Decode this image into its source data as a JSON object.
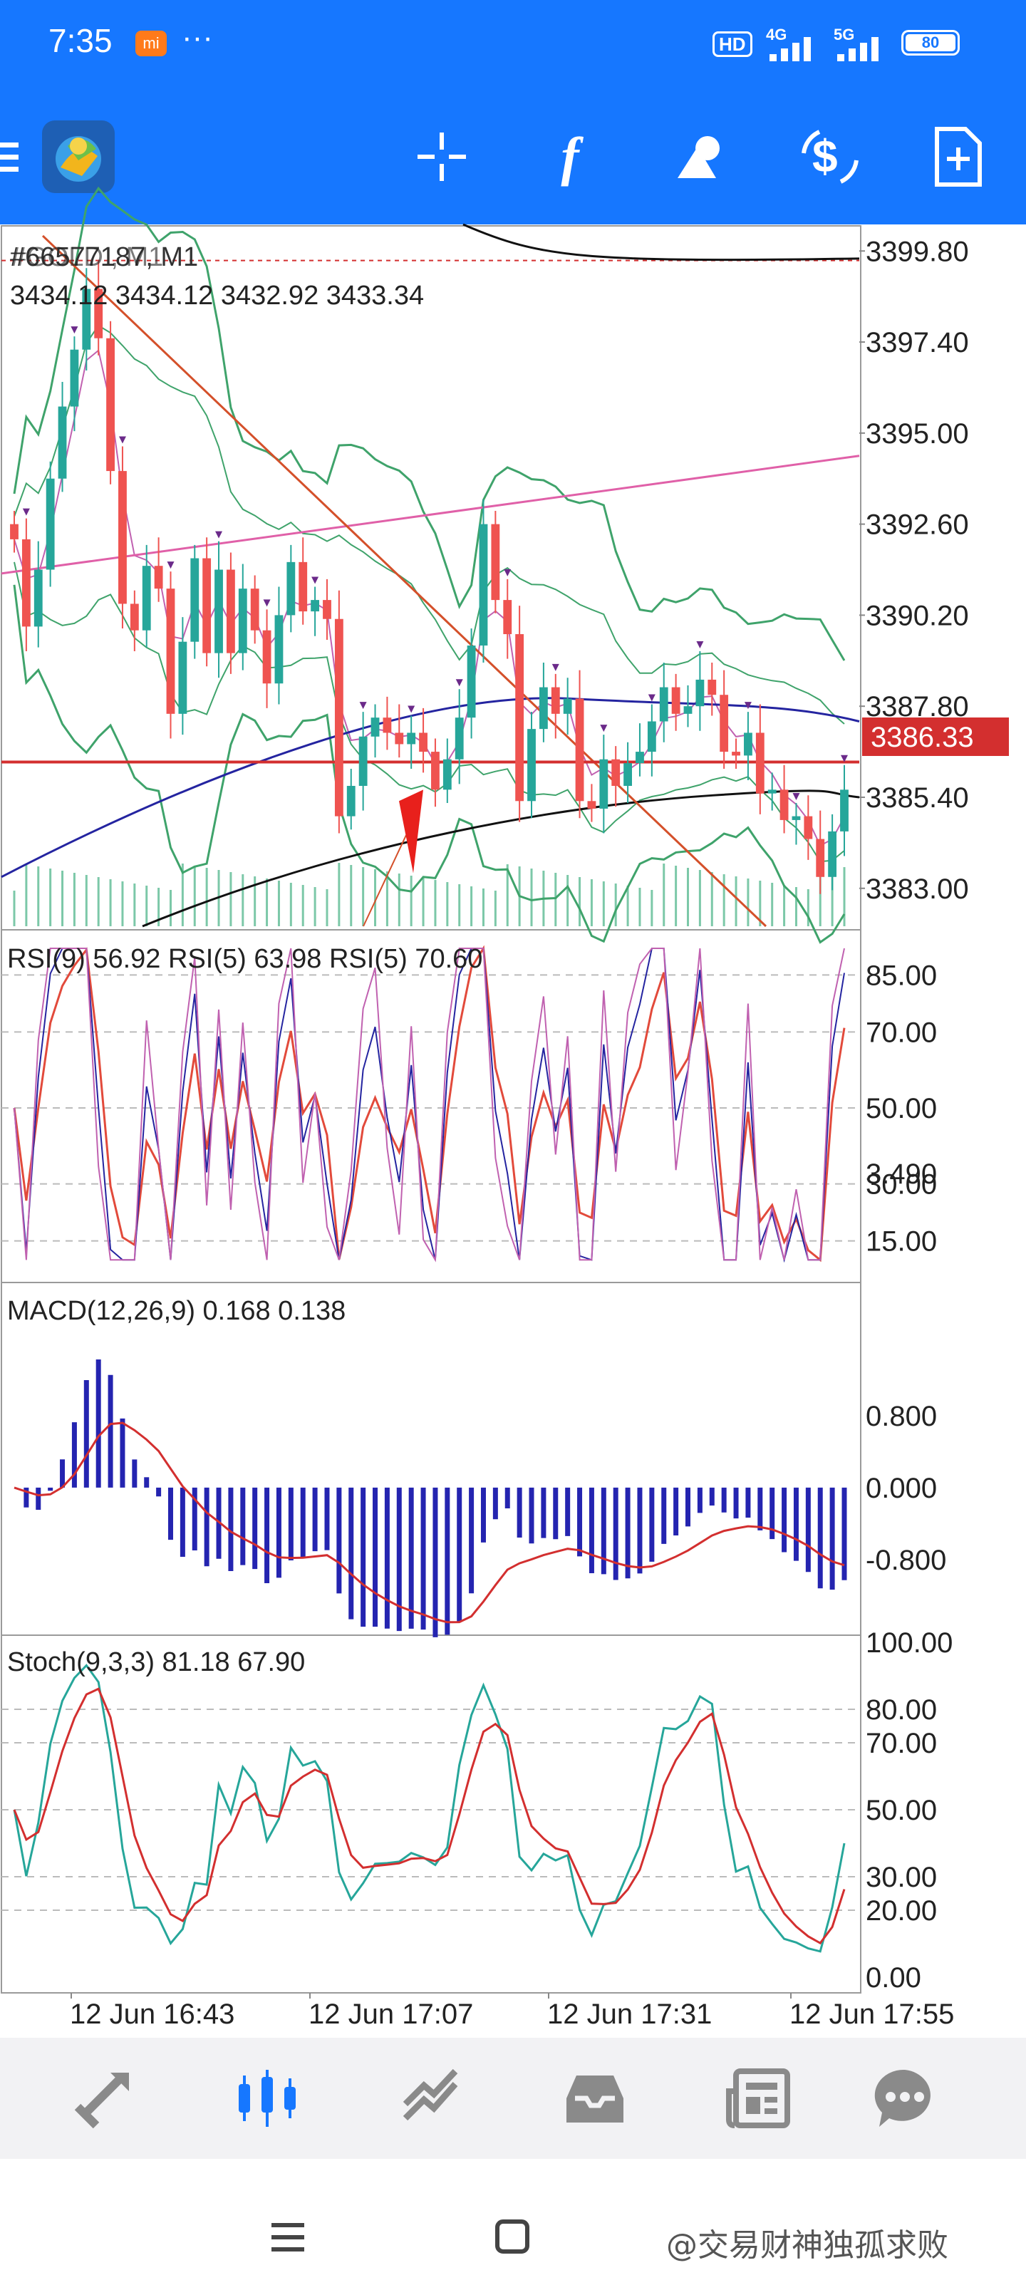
{
  "status": {
    "time": "7:35",
    "mi_badge": "mi",
    "dots": "···",
    "hd": "HD",
    "net1": "4G",
    "net2": "5G",
    "battery": "80"
  },
  "toolbar": {
    "icons": [
      "menu-icon",
      "metatrader-logo",
      "crosshair-icon",
      "indicators-icon",
      "objects-icon",
      "trade-icon",
      "new-order-icon"
    ],
    "indicator_glyph": "f"
  },
  "main_chart": {
    "symbol": "#GOLD , M1",
    "symbol_overlap": "#66577187, M1",
    "ohlc": "3434.12 3434.12 3432.92 3433.34",
    "price_labels": [
      "3399.80",
      "3397.40",
      "3395.00",
      "3392.60",
      "3390.20",
      "3387.80",
      "3385.40",
      "3383.00"
    ],
    "current_price": "3386.33",
    "current_price_color": "#d32f2f"
  },
  "rsi_panel": {
    "label": "RSI(9) 56.92 RSI(5) 63.98 RSI(5) 70.60",
    "levels": [
      "85.00",
      "70.00",
      "50.00",
      "30.00",
      "15.00"
    ]
  },
  "macd_panel": {
    "label": "MACD(12,26,9) 0.168 0.138",
    "levels": [
      "3.490",
      "0.800",
      "0.000",
      "-0.800"
    ]
  },
  "stoch_panel": {
    "label": "Stoch(9,3,3) 81.18 67.90",
    "levels": [
      "100.00",
      "80.00",
      "70.00",
      "50.00",
      "30.00",
      "20.00",
      "0.00"
    ]
  },
  "time_axis": [
    "12 Jun 16:43",
    "12 Jun 17:07",
    "12 Jun 17:31",
    "12 Jun 17:55"
  ],
  "bottom_nav": {
    "items": [
      "quotes-icon",
      "chart-icon",
      "trade-icon",
      "history-icon",
      "news-icon",
      "chat-icon"
    ],
    "active": "chart-icon",
    "active_color": "#1677ff"
  },
  "system_nav": {
    "watermark": "@交易财神独孤求败"
  },
  "chart_data": {
    "type": "candlestick",
    "symbol": "#GOLD",
    "timeframe": "M1",
    "ylim": [
      3382.0,
      3400.5
    ],
    "close": [
      3392.2,
      3389.9,
      3391.4,
      3393.8,
      3395.7,
      3397.2,
      3398.8,
      3397.5,
      3394.0,
      3390.5,
      3389.8,
      3391.5,
      3390.9,
      3387.6,
      3389.5,
      3391.7,
      3389.2,
      3391.4,
      3389.2,
      3390.9,
      3389.8,
      3388.4,
      3390.2,
      3391.6,
      3390.3,
      3390.6,
      3390.1,
      3384.9,
      3385.7,
      3387.0,
      3387.5,
      3387.1,
      3386.8,
      3387.1,
      3386.6,
      3385.6,
      3386.4,
      3387.5,
      3389.4,
      3392.6,
      3390.6,
      3389.7,
      3385.3,
      3387.2,
      3388.3,
      3387.6,
      3388.0,
      3385.3,
      3385.1,
      3386.4,
      3385.7,
      3386.3,
      3386.6,
      3387.4,
      3388.3,
      3387.6,
      3387.8,
      3388.5,
      3388.1,
      3386.6,
      3386.5,
      3387.1,
      3385.5,
      3385.6,
      3384.8,
      3384.9,
      3384.3,
      3383.3,
      3384.5,
      3385.6
    ]
  }
}
